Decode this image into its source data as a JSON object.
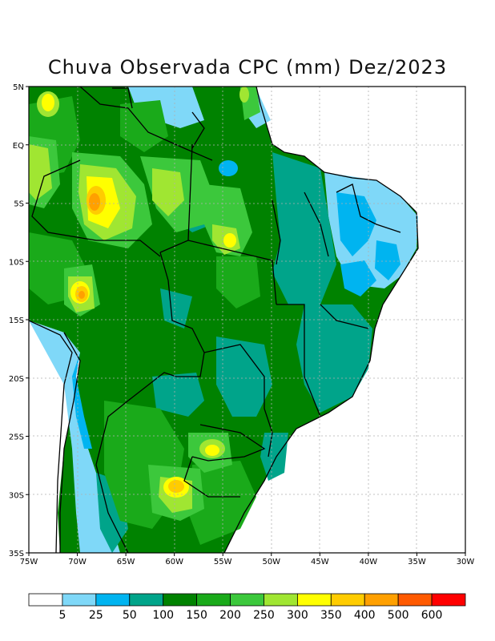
{
  "title": "Chuva Observada CPC (mm) Dez/2023",
  "map": {
    "lat_range": [
      -35,
      5
    ],
    "lon_range": [
      -75,
      -30
    ],
    "lat_ticks": [
      "5N",
      "EQ",
      "5S",
      "10S",
      "15S",
      "20S",
      "25S",
      "30S",
      "35S"
    ],
    "lon_ticks": [
      "75W",
      "70W",
      "65W",
      "60W",
      "55W",
      "50W",
      "45W",
      "40W",
      "35W",
      "30W"
    ],
    "grid": true
  },
  "colorbar": {
    "colors": [
      "#ffffff",
      "#7fd8f8",
      "#00b4f0",
      "#00a48a",
      "#008200",
      "#1aaa1a",
      "#3cc83c",
      "#a0e632",
      "#ffff00",
      "#ffcc00",
      "#ffa000",
      "#ff5a00",
      "#ff0000"
    ],
    "labels": [
      "5",
      "25",
      "50",
      "100",
      "150",
      "200",
      "250",
      "300",
      "350",
      "400",
      "500",
      "600"
    ]
  }
}
